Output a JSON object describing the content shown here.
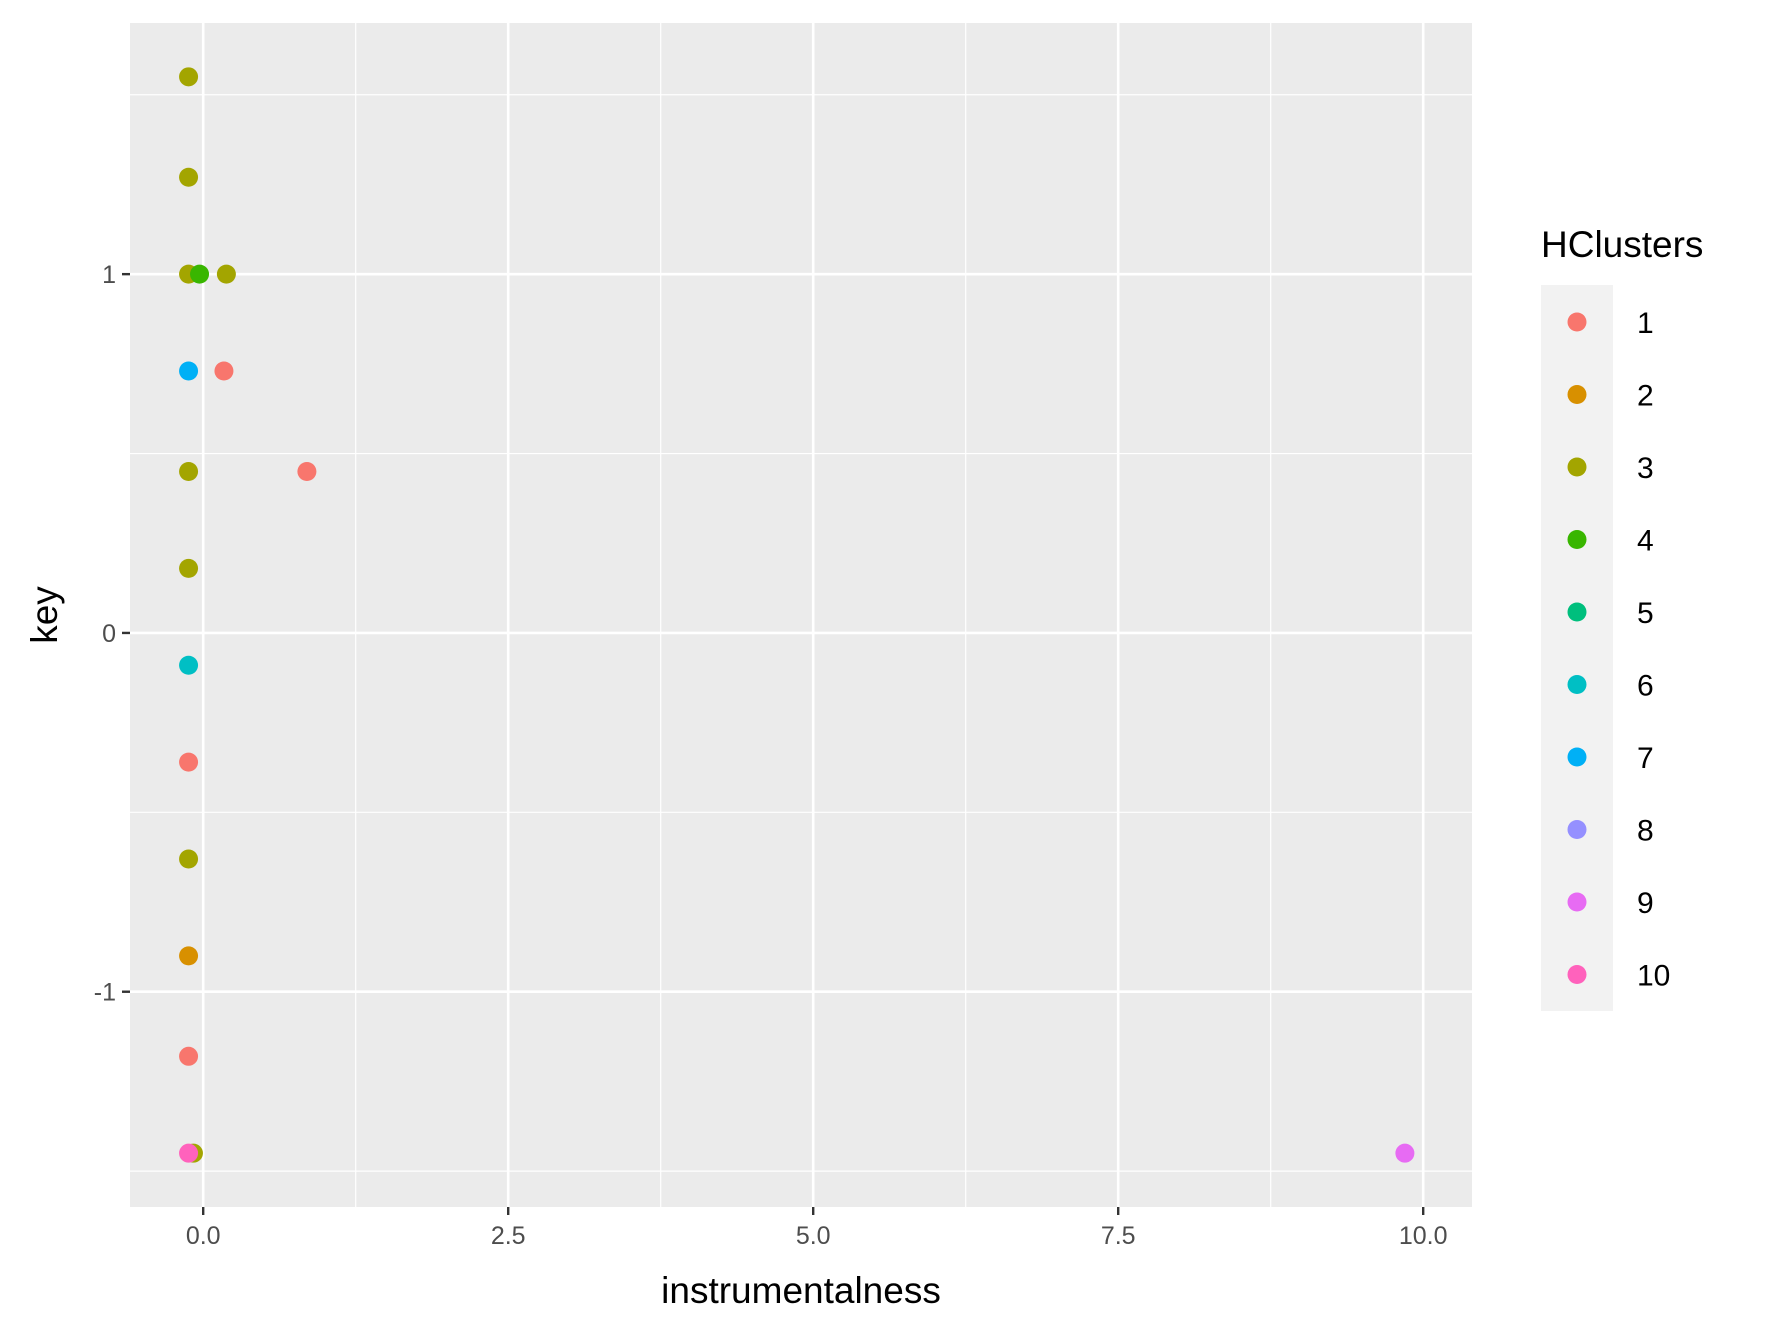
{
  "chart_data": {
    "type": "scatter",
    "title": "",
    "xlabel": "instrumentalness",
    "ylabel": "key",
    "xlim": [
      -0.6,
      10.4
    ],
    "ylim": [
      -1.6,
      1.7
    ],
    "x_ticks": [
      0.0,
      2.5,
      5.0,
      7.5,
      10.0
    ],
    "x_tick_labels": [
      "0.0",
      "2.5",
      "5.0",
      "7.5",
      "10.0"
    ],
    "y_ticks": [
      -1,
      0,
      1
    ],
    "y_tick_labels": [
      "-1",
      "0",
      "1"
    ],
    "grid": true,
    "legend": {
      "title": "HClusters",
      "position": "right"
    },
    "series": [
      {
        "name": "1",
        "color": "#F8766D",
        "points": [
          [
            -0.12,
            -1.18
          ],
          [
            -0.12,
            -0.36
          ],
          [
            0.17,
            0.73
          ],
          [
            0.85,
            0.45
          ]
        ]
      },
      {
        "name": "2",
        "color": "#D89000",
        "points": [
          [
            -0.12,
            -0.9
          ]
        ]
      },
      {
        "name": "3",
        "color": "#A3A500",
        "points": [
          [
            -0.12,
            1.55
          ],
          [
            -0.12,
            1.27
          ],
          [
            -0.12,
            1.0
          ],
          [
            0.19,
            1.0
          ],
          [
            -0.12,
            0.45
          ],
          [
            -0.12,
            0.18
          ],
          [
            -0.12,
            -0.63
          ],
          [
            -0.08,
            -1.45
          ]
        ]
      },
      {
        "name": "4",
        "color": "#39B600",
        "points": [
          [
            -0.03,
            1.0
          ]
        ]
      },
      {
        "name": "5",
        "color": "#00BF7D",
        "points": []
      },
      {
        "name": "6",
        "color": "#00BFC4",
        "points": [
          [
            -0.12,
            -0.09
          ]
        ]
      },
      {
        "name": "7",
        "color": "#00B0F6",
        "points": [
          [
            -0.12,
            0.73
          ]
        ]
      },
      {
        "name": "8",
        "color": "#9590FF",
        "points": []
      },
      {
        "name": "9",
        "color": "#E76BF3",
        "points": [
          [
            9.85,
            -1.45
          ]
        ]
      },
      {
        "name": "10",
        "color": "#FF62BC",
        "points": [
          [
            -0.12,
            -1.45
          ]
        ]
      }
    ]
  }
}
